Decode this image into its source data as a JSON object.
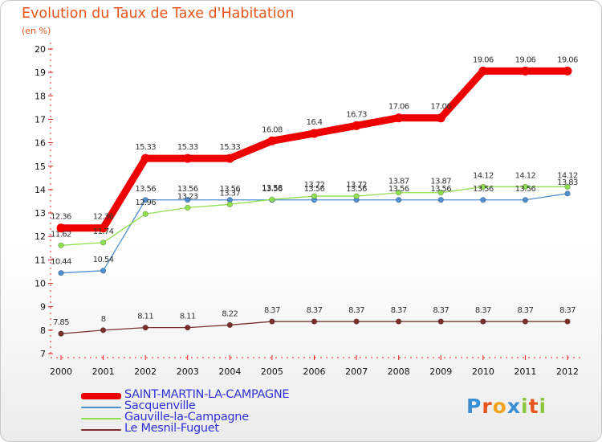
{
  "chart_data": {
    "type": "line",
    "title": "Evolution du Taux de Taxe d'Habitation",
    "unit_label": "(en %)",
    "x": [
      "2000",
      "2001",
      "2002",
      "2003",
      "2004",
      "2005",
      "2006",
      "2007",
      "2008",
      "2009",
      "2010",
      "2011",
      "2012"
    ],
    "ylim": [
      7,
      20
    ],
    "yticks": [
      "7",
      "8",
      "9",
      "10",
      "11",
      "12",
      "13",
      "14",
      "15",
      "16",
      "17",
      "18",
      "19",
      "20"
    ],
    "series": [
      {
        "name": "SAINT-MARTIN-LA-CAMPAGNE",
        "color": "#ee0000",
        "values": [
          12.36,
          12.36,
          15.33,
          15.33,
          15.33,
          16.08,
          16.4,
          16.73,
          17.06,
          17.06,
          19.06,
          19.06,
          19.06
        ],
        "labels": [
          "12.36",
          "12.36",
          "15.33",
          "15.33",
          "15.33",
          "16.08",
          "16.4",
          "16.73",
          "17.06",
          "17.06",
          "19.06",
          "19.06",
          "19.06"
        ]
      },
      {
        "name": "Sacquenville",
        "color": "#4f8fd0",
        "values": [
          10.44,
          10.54,
          13.56,
          13.56,
          13.56,
          13.56,
          13.56,
          13.56,
          13.56,
          13.56,
          13.56,
          13.56,
          13.83
        ],
        "labels": [
          "10.44",
          "10.54",
          "13.56",
          "13.56",
          "13.56",
          "13.56",
          "13.56",
          "13.56",
          "13.56",
          "13.56",
          "13.56",
          "13.56",
          "13.83"
        ]
      },
      {
        "name": "Gauville-la-Campagne",
        "color": "#8ee050",
        "values": [
          11.62,
          11.74,
          12.96,
          13.23,
          13.37,
          13.58,
          13.72,
          13.72,
          13.87,
          13.87,
          14.12,
          14.12,
          14.12
        ],
        "labels": [
          "11.62",
          "11.74",
          "12.96",
          "13.23",
          "13.37",
          "13.58",
          "13.72",
          "13.72",
          "13.87",
          "13.87",
          "14.12",
          "14.12",
          "14.12"
        ]
      },
      {
        "name": "Le Mesnil-Fuguet",
        "color": "#7a2f2f",
        "values": [
          7.85,
          8,
          8.11,
          8.11,
          8.22,
          8.37,
          8.37,
          8.37,
          8.37,
          8.37,
          8.37,
          8.37,
          8.37
        ],
        "labels": [
          "7.85",
          "8",
          "8.11",
          "8.11",
          "8.22",
          "8.37",
          "8.37",
          "8.37",
          "8.37",
          "8.37",
          "8.37",
          "8.37",
          "8.37"
        ]
      }
    ]
  },
  "brand": {
    "letters": [
      "P",
      "r",
      "o",
      "x",
      "i",
      "t",
      "i"
    ],
    "colors": [
      "#3a8fd4",
      "#e8551c",
      "#f2a51c",
      "#3a8fd4",
      "#8ec63f",
      "#e8551c",
      "#8ec63f"
    ]
  }
}
